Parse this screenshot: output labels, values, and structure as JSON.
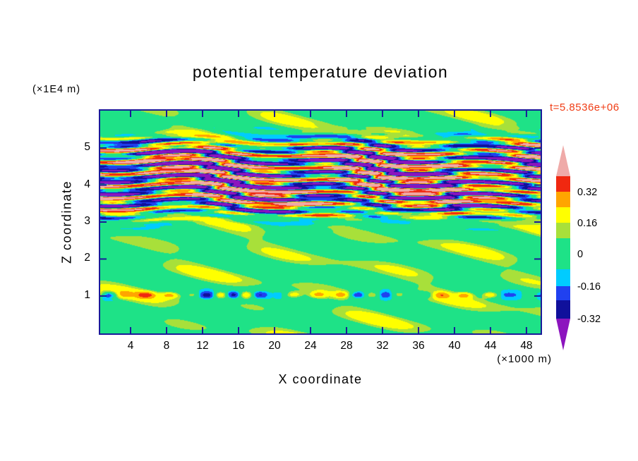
{
  "chart_data": {
    "type": "heatmap",
    "title": "potential temperature deviation",
    "annotation": "t=5.8536e+06",
    "xlabel": "X coordinate",
    "x_units": "(×1000 m)",
    "ylabel": "Z coordinate",
    "y_units": "(×1E4 m)",
    "x_ticks": [
      4,
      8,
      12,
      16,
      20,
      24,
      28,
      32,
      36,
      40,
      44,
      48
    ],
    "y_ticks": [
      1,
      2,
      3,
      4,
      5
    ],
    "x_range": [
      0.47,
      49.73
    ],
    "y_range": [
      -0.05,
      6.05
    ],
    "levels": [
      -0.32,
      -0.18,
      -0.1,
      -0.05,
      0.05,
      0.1,
      0.18,
      0.26,
      0.4
    ],
    "colors": [
      "#8C14BE",
      "#10109B",
      "#2041F0",
      "#00CCFF",
      "#1EE287",
      "#A8E03A",
      "#FFFF00",
      "#FFA500",
      "#F02810",
      "#EFAAA8"
    ],
    "colorbar_labels": [
      "0.32",
      "0.16",
      "0",
      "-0.16",
      "-0.32"
    ],
    "frame_color": "#1A1A99",
    "annotation_color": "#F03C14",
    "field_description": "Contour field of potential temperature deviation: strongly striated wave-breaking layer between z≈3×1E4 m and z≈5×1E4 m with alternating positive (pink/red/orange/yellow) and negative (purple/navy/blue/cyan) anomalies up to about ±0.4; a thin perturbed streak near z≈1×1E4 m; the rest of the domain is near zero (green) with weak positive patches (yellow-green).",
    "field": {
      "main_band": {
        "center": 4.2,
        "width": 0.95,
        "amplitude": 0.55,
        "stripe_k": 19
      },
      "thin_band": {
        "center": 1.03,
        "width": 0.09,
        "amplitude": 0.13
      },
      "background": {
        "amplitude": 0.085,
        "negative_clip": -0.045
      }
    }
  }
}
